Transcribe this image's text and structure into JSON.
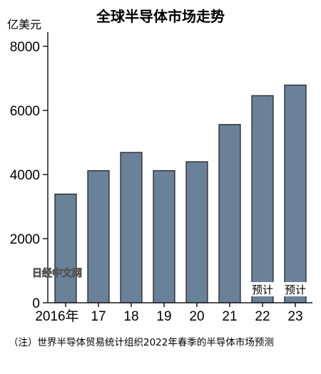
{
  "chart_data": {
    "type": "bar",
    "title": "全球半导体市场走势",
    "ylabel": "亿美元",
    "categories": [
      "2016年",
      "17",
      "18",
      "19",
      "20",
      "21",
      "22",
      "23"
    ],
    "values": [
      3390,
      4120,
      4690,
      4120,
      4400,
      5560,
      6460,
      6790
    ],
    "annotations": [
      "",
      "",
      "",
      "",
      "",
      "",
      "预计",
      "预计"
    ],
    "ylim": [
      0,
      8000
    ],
    "yticks": [
      0,
      2000,
      4000,
      6000,
      8000
    ],
    "grid": false,
    "bar_color": "#6a8299",
    "note": "（注）世界半导体贸易统计组织2022年春季的半导体市场预测",
    "watermark": "日经中文网"
  }
}
